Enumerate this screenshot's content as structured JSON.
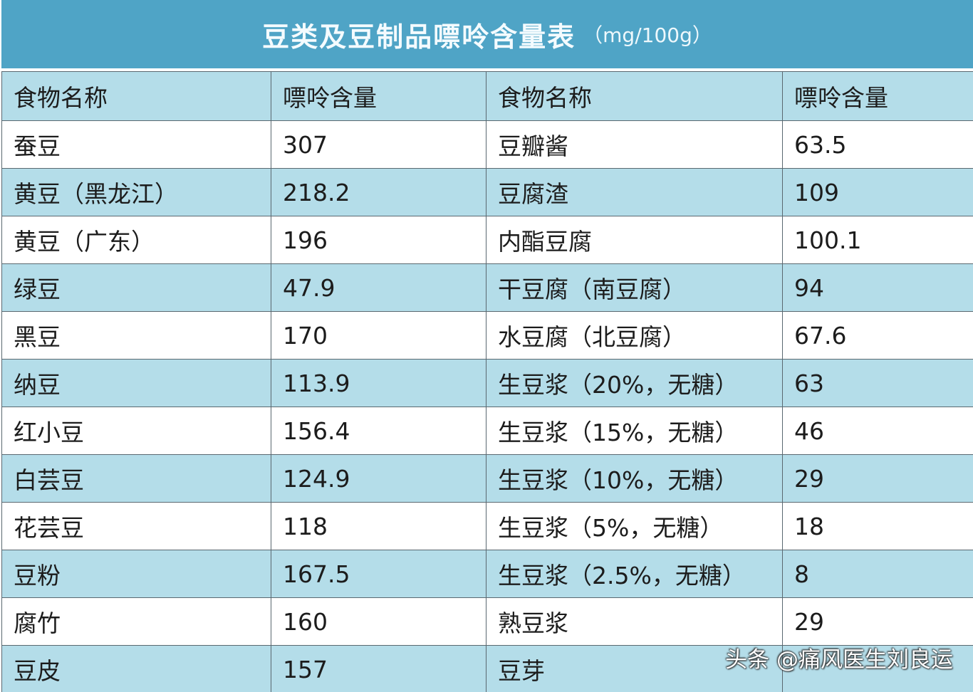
{
  "header": {
    "title": "豆类及豆制品嘌呤含量表",
    "unit": "（mg/100g）"
  },
  "table": {
    "columns": [
      "食物名称",
      "嘌呤含量",
      "食物名称",
      "嘌呤含量"
    ],
    "rows": [
      [
        "蚕豆",
        "307",
        "豆瓣酱",
        "63.5"
      ],
      [
        "黄豆（黑龙江）",
        "218.2",
        "豆腐渣",
        "109"
      ],
      [
        "黄豆（广东）",
        "196",
        "内酯豆腐",
        "100.1"
      ],
      [
        "绿豆",
        "47.9",
        "干豆腐（南豆腐）",
        "94"
      ],
      [
        "黑豆",
        "170",
        "水豆腐（北豆腐）",
        "67.6"
      ],
      [
        "纳豆",
        "113.9",
        "生豆浆（20%，无糖）",
        "63"
      ],
      [
        "红小豆",
        "156.4",
        "生豆浆（15%，无糖）",
        "46"
      ],
      [
        "白芸豆",
        "124.9",
        "生豆浆（10%，无糖）",
        "29"
      ],
      [
        "花芸豆",
        "118",
        "生豆浆（5%，无糖）",
        "18"
      ],
      [
        "豆粉",
        "167.5",
        "生豆浆（2.5%，无糖）",
        "8"
      ],
      [
        "腐竹",
        "160",
        "熟豆浆",
        "29"
      ],
      [
        "豆皮",
        "157",
        "豆芽",
        ""
      ]
    ]
  },
  "watermark": "头条 @痛风医生刘良运",
  "colors": {
    "title_bg": "#4fa4c6",
    "stripe": "#b4dde9",
    "border": "#5a6870"
  }
}
